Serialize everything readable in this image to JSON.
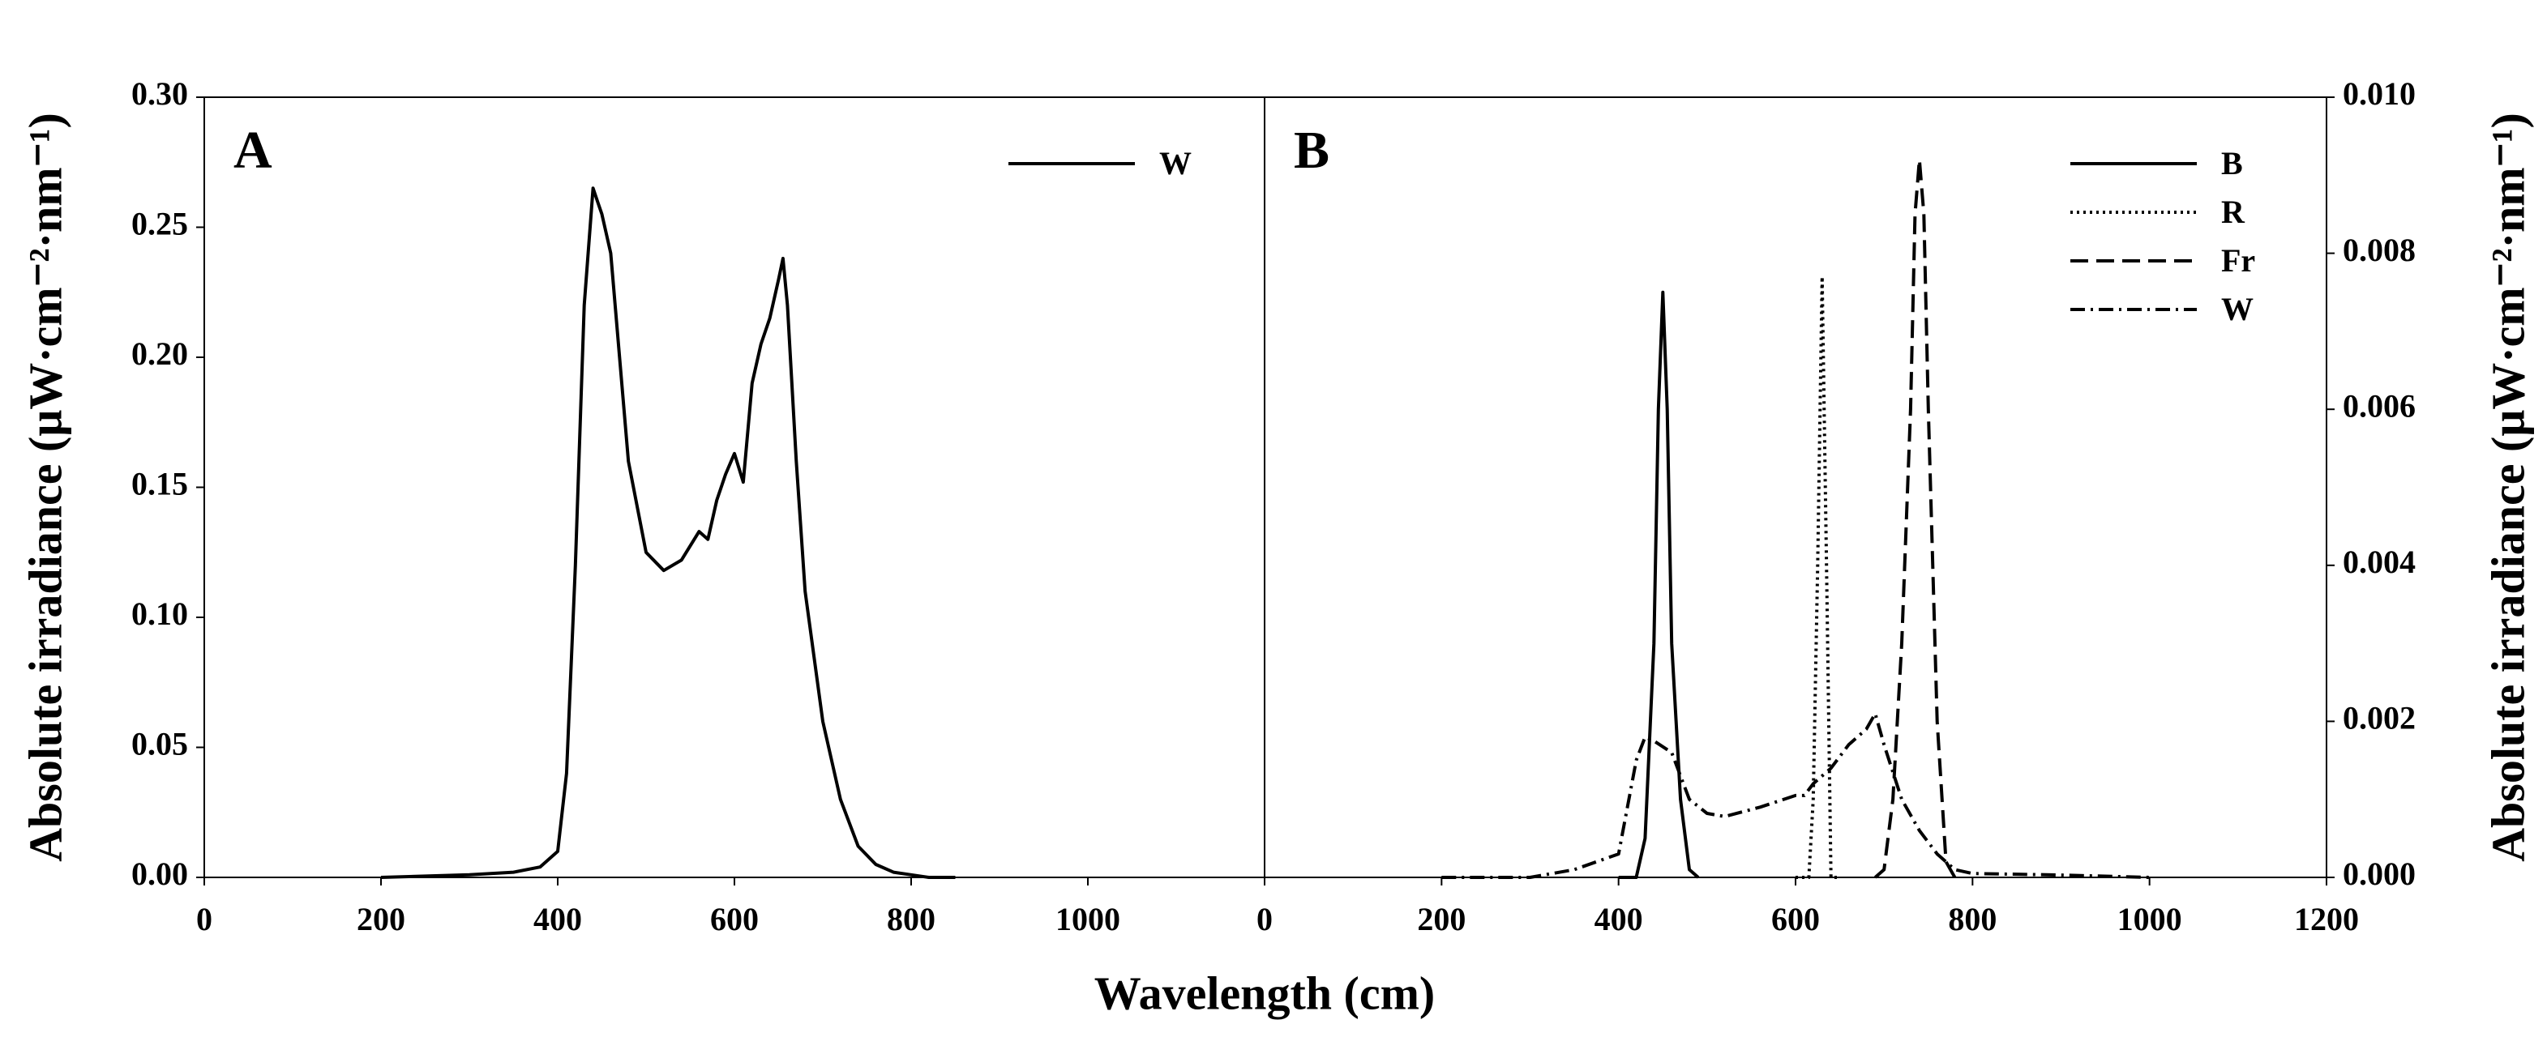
{
  "xlabel": "Wavelength (cm)",
  "chart_data": [
    {
      "type": "line",
      "panel": "A",
      "ylabel": "Absolute irradiance (μW·cm⁻²·nm⁻¹)",
      "yaxis_side": "left",
      "xlim": [
        0,
        1200
      ],
      "xticks": [
        0,
        200,
        400,
        600,
        800,
        1000
      ],
      "ylim": [
        0,
        0.3
      ],
      "yticks": [
        {
          "value": 0,
          "label": "0.00"
        },
        {
          "value": 0.05,
          "label": "0.05"
        },
        {
          "value": 0.1,
          "label": "0.10"
        },
        {
          "value": 0.15,
          "label": "0.15"
        },
        {
          "value": 0.2,
          "label": "0.20"
        },
        {
          "value": 0.25,
          "label": "0.25"
        },
        {
          "value": 0.3,
          "label": "0.30"
        }
      ],
      "legend": "upper right",
      "series": [
        {
          "name": "W",
          "color": "#000000",
          "dash": "solid",
          "x": [
            200,
            300,
            350,
            380,
            400,
            410,
            420,
            430,
            440,
            445,
            450,
            460,
            470,
            480,
            500,
            520,
            540,
            560,
            570,
            580,
            590,
            600,
            610,
            620,
            630,
            640,
            650,
            655,
            660,
            670,
            680,
            700,
            720,
            740,
            760,
            780,
            800,
            820,
            850
          ],
          "values": [
            0,
            0.001,
            0.002,
            0.004,
            0.01,
            0.04,
            0.12,
            0.22,
            0.265,
            0.26,
            0.255,
            0.24,
            0.2,
            0.16,
            0.125,
            0.118,
            0.122,
            0.133,
            0.13,
            0.145,
            0.155,
            0.163,
            0.152,
            0.19,
            0.205,
            0.215,
            0.23,
            0.238,
            0.22,
            0.16,
            0.11,
            0.06,
            0.03,
            0.012,
            0.005,
            0.002,
            0.001,
            0,
            0
          ]
        }
      ]
    },
    {
      "type": "line",
      "panel": "B",
      "ylabel": "Absolute irradiance (μW·cm⁻²·nm⁻¹)",
      "yaxis_side": "right",
      "xlim": [
        0,
        1200
      ],
      "xticks": [
        0,
        200,
        400,
        600,
        800,
        1000,
        1200
      ],
      "ylim": [
        0,
        0.01
      ],
      "yticks": [
        {
          "value": 0,
          "label": "0.000"
        },
        {
          "value": 0.002,
          "label": "0.002"
        },
        {
          "value": 0.004,
          "label": "0.004"
        },
        {
          "value": 0.006,
          "label": "0.006"
        },
        {
          "value": 0.008,
          "label": "0.008"
        },
        {
          "value": 0.01,
          "label": "0.010"
        }
      ],
      "legend": "upper right",
      "series": [
        {
          "name": "B",
          "color": "#000000",
          "dash": "solid",
          "x": [
            400,
            420,
            430,
            440,
            445,
            450,
            455,
            460,
            470,
            480,
            490
          ],
          "values": [
            0,
            0,
            0.0005,
            0.003,
            0.006,
            0.0075,
            0.006,
            0.003,
            0.001,
            0.0001,
            0
          ]
        },
        {
          "name": "R",
          "color": "#000000",
          "dash": "dotted",
          "x": [
            600,
            615,
            620,
            625,
            630,
            635,
            640,
            650
          ],
          "values": [
            0,
            0,
            0.001,
            0.004,
            0.0077,
            0.004,
            0,
            0
          ]
        },
        {
          "name": "Fr",
          "color": "#000000",
          "dash": "dashed",
          "x": [
            690,
            700,
            710,
            720,
            730,
            735,
            740,
            745,
            750,
            760,
            770,
            780
          ],
          "values": [
            0,
            0.0001,
            0.001,
            0.003,
            0.006,
            0.0085,
            0.0092,
            0.0085,
            0.006,
            0.002,
            0.0002,
            0
          ]
        },
        {
          "name": "W",
          "color": "#000000",
          "dash": "dashdot",
          "x": [
            200,
            300,
            350,
            400,
            420,
            430,
            440,
            460,
            480,
            500,
            520,
            560,
            600,
            610,
            620,
            640,
            660,
            680,
            690,
            700,
            720,
            740,
            760,
            780,
            800,
            900,
            1000
          ],
          "values": [
            0,
            0,
            0.0001,
            0.0003,
            0.0015,
            0.0018,
            0.00175,
            0.0016,
            0.001,
            0.00082,
            0.00078,
            0.0009,
            0.00105,
            0.00105,
            0.0012,
            0.0014,
            0.0017,
            0.0019,
            0.0021,
            0.0017,
            0.001,
            0.0006,
            0.0003,
            0.0001,
            5e-05,
            3e-05,
            0
          ]
        }
      ]
    }
  ]
}
